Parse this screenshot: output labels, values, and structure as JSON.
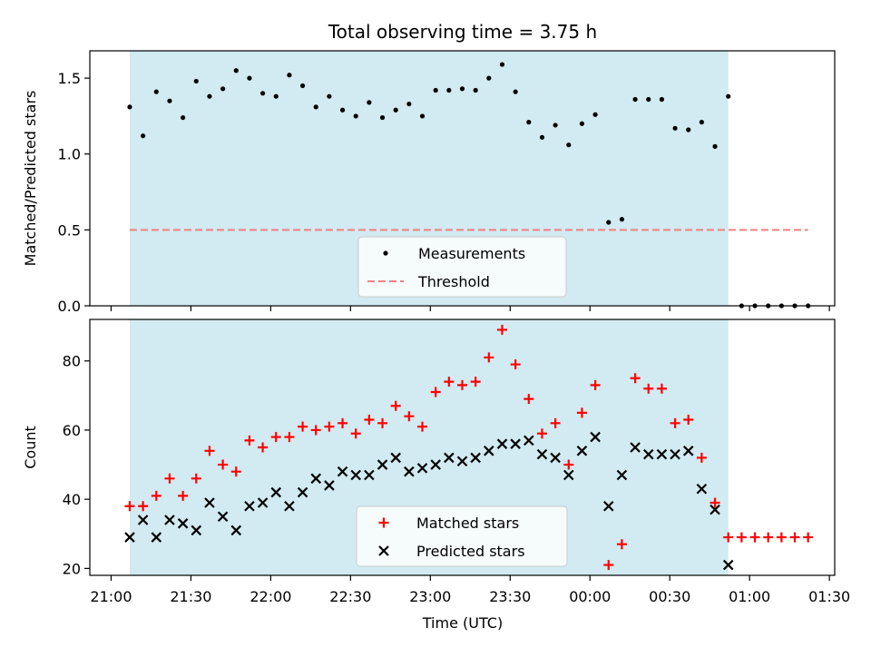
{
  "chart_data": {
    "title": "Total observing time = 3.75 h",
    "xlabel": "Time (UTC)",
    "x_ticks": [
      "21:00",
      "21:30",
      "22:00",
      "22:30",
      "23:00",
      "23:30",
      "00:00",
      "00:30",
      "01:00",
      "01:30"
    ],
    "observing_window": {
      "start": "21:07",
      "end": "00:52",
      "color": "#add8e6"
    },
    "panels": [
      {
        "type": "scatter",
        "ylabel": "Matched/Predicted stars",
        "ylim": [
          0,
          1.68
        ],
        "y_ticks": [
          "0.0",
          "0.5",
          "1.0",
          "1.5"
        ],
        "legend_position": "lower-center",
        "threshold": {
          "name": "Threshold",
          "value": 0.5,
          "x_start": "21:07",
          "x_end": "01:22",
          "color": "#f08080"
        },
        "series": [
          {
            "name": "Measurements",
            "marker": "dot",
            "color": "#000000",
            "x": [
              "21:07",
              "21:12",
              "21:17",
              "21:22",
              "21:27",
              "21:32",
              "21:37",
              "21:42",
              "21:47",
              "21:52",
              "21:57",
              "22:02",
              "22:07",
              "22:12",
              "22:17",
              "22:22",
              "22:27",
              "22:32",
              "22:37",
              "22:42",
              "22:47",
              "22:52",
              "22:57",
              "23:02",
              "23:07",
              "23:12",
              "23:17",
              "23:22",
              "23:27",
              "23:32",
              "23:37",
              "23:42",
              "23:47",
              "23:52",
              "23:57",
              "00:02",
              "00:07",
              "00:12",
              "00:17",
              "00:22",
              "00:27",
              "00:32",
              "00:37",
              "00:42",
              "00:47",
              "00:52",
              "00:57",
              "01:02",
              "01:07",
              "01:12",
              "01:17",
              "01:22"
            ],
            "y": [
              1.31,
              1.12,
              1.41,
              1.35,
              1.24,
              1.48,
              1.38,
              1.43,
              1.55,
              1.5,
              1.4,
              1.38,
              1.52,
              1.45,
              1.31,
              1.38,
              1.29,
              1.25,
              1.34,
              1.24,
              1.29,
              1.33,
              1.25,
              1.42,
              1.42,
              1.43,
              1.42,
              1.5,
              1.59,
              1.41,
              1.21,
              1.11,
              1.19,
              1.06,
              1.2,
              1.26,
              0.55,
              0.57,
              1.36,
              1.36,
              1.36,
              1.17,
              1.16,
              1.21,
              1.05,
              1.38,
              0,
              0,
              0,
              0,
              0,
              0
            ]
          }
        ]
      },
      {
        "type": "scatter",
        "ylabel": "Count",
        "ylim": [
          18,
          92
        ],
        "y_ticks": [
          "20",
          "40",
          "60",
          "80"
        ],
        "legend_position": "lower-center",
        "series": [
          {
            "name": "Matched stars",
            "marker": "plus",
            "color": "#ff0000",
            "x": [
              "21:07",
              "21:12",
              "21:17",
              "21:22",
              "21:27",
              "21:32",
              "21:37",
              "21:42",
              "21:47",
              "21:52",
              "21:57",
              "22:02",
              "22:07",
              "22:12",
              "22:17",
              "22:22",
              "22:27",
              "22:32",
              "22:37",
              "22:42",
              "22:47",
              "22:52",
              "22:57",
              "23:02",
              "23:07",
              "23:12",
              "23:17",
              "23:22",
              "23:27",
              "23:32",
              "23:37",
              "23:42",
              "23:47",
              "23:52",
              "23:57",
              "00:02",
              "00:07",
              "00:12",
              "00:17",
              "00:22",
              "00:27",
              "00:32",
              "00:37",
              "00:42",
              "00:47",
              "00:52",
              "00:57",
              "01:02",
              "01:07",
              "01:12",
              "01:17",
              "01:22"
            ],
            "y": [
              38,
              38,
              41,
              46,
              41,
              46,
              54,
              50,
              48,
              57,
              55,
              58,
              58,
              61,
              60,
              61,
              62,
              59,
              63,
              62,
              67,
              64,
              61,
              71,
              74,
              73,
              74,
              81,
              89,
              79,
              69,
              59,
              62,
              50,
              65,
              73,
              21,
              27,
              75,
              72,
              72,
              62,
              63,
              52,
              39,
              29,
              29,
              29,
              29,
              29,
              29,
              29
            ]
          },
          {
            "name": "Predicted stars",
            "marker": "x",
            "color": "#000000",
            "x": [
              "21:07",
              "21:12",
              "21:17",
              "21:22",
              "21:27",
              "21:32",
              "21:37",
              "21:42",
              "21:47",
              "21:52",
              "21:57",
              "22:02",
              "22:07",
              "22:12",
              "22:17",
              "22:22",
              "22:27",
              "22:32",
              "22:37",
              "22:42",
              "22:47",
              "22:52",
              "22:57",
              "23:02",
              "23:07",
              "23:12",
              "23:17",
              "23:22",
              "23:27",
              "23:32",
              "23:37",
              "23:42",
              "23:47",
              "23:52",
              "23:57",
              "00:02",
              "00:07",
              "00:12",
              "00:17",
              "00:22",
              "00:27",
              "00:32",
              "00:37",
              "00:42",
              "00:47",
              "00:52"
            ],
            "y": [
              29,
              34,
              29,
              34,
              33,
              31,
              39,
              35,
              31,
              38,
              39,
              42,
              38,
              42,
              46,
              44,
              48,
              47,
              47,
              50,
              52,
              48,
              49,
              50,
              52,
              51,
              52,
              54,
              56,
              56,
              57,
              53,
              52,
              47,
              54,
              58,
              38,
              47,
              55,
              53,
              53,
              53,
              54,
              43,
              37,
              21
            ]
          }
        ]
      }
    ]
  }
}
